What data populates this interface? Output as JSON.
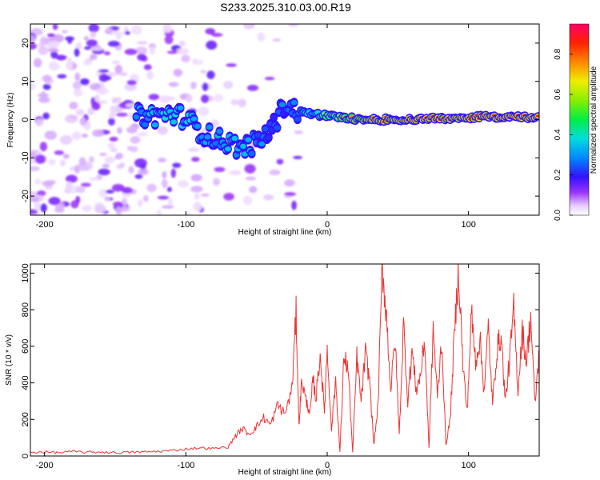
{
  "title": "S233.2025.310.03.00.R19",
  "colors": {
    "snr_line": "#ee3333",
    "axis": "#000000",
    "background": "#ffffff"
  },
  "chart_data": [
    {
      "type": "heatmap",
      "xlabel": "Height of straight line (km)",
      "ylabel": "Frequency (Hz)",
      "xlim": [
        -210,
        150
      ],
      "ylim": [
        -25,
        25
      ],
      "x_ticks": [
        {
          "value": -200,
          "label": "-200"
        },
        {
          "value": -100,
          "label": "-100"
        },
        {
          "value": 0,
          "label": "0"
        },
        {
          "value": 100,
          "label": "100"
        }
      ],
      "y_ticks": [
        {
          "value": 20,
          "label": "20"
        },
        {
          "value": 10,
          "label": "10"
        },
        {
          "value": 0,
          "label": "0"
        },
        {
          "value": -10,
          "label": "-10"
        },
        {
          "value": -20,
          "label": "-20"
        }
      ],
      "colorbar": {
        "label": "Normalized spectral amplitude",
        "range": [
          0,
          0.95
        ],
        "ticks": [
          {
            "value": 0.0,
            "label": "0.0"
          },
          {
            "value": 0.2,
            "label": "0.2"
          },
          {
            "value": 0.4,
            "label": "0.4"
          },
          {
            "value": 0.6,
            "label": "0.6"
          },
          {
            "value": 0.8,
            "label": "0.8"
          }
        ]
      },
      "ridge": {
        "x": [
          -135,
          -120,
          -110,
          -100,
          -90,
          -80,
          -70,
          -60,
          -50,
          -40,
          -30,
          -20,
          -10,
          0,
          10,
          30,
          50,
          70,
          90,
          110,
          130,
          150
        ],
        "freq": [
          1,
          1,
          1.5,
          0.5,
          -3,
          -5,
          -6,
          -7.5,
          -6,
          -3,
          4,
          2,
          1.5,
          1,
          0.5,
          0,
          0,
          0.2,
          0.4,
          0.8,
          0.6,
          0.5
        ],
        "strength": [
          0.35,
          0.45,
          0.5,
          0.45,
          0.4,
          0.4,
          0.4,
          0.4,
          0.35,
          0.3,
          0.3,
          0.35,
          0.45,
          0.55,
          0.65,
          0.8,
          0.85,
          0.9,
          0.85,
          0.9,
          0.9,
          0.85
        ]
      }
    },
    {
      "type": "line",
      "name": "SNR",
      "xlabel": "Height of straight line (km)",
      "ylabel": "SNR (10 * v/v)",
      "xlim": [
        -210,
        150
      ],
      "ylim": [
        0,
        1050
      ],
      "x_ticks": [
        {
          "value": -200,
          "label": "-200"
        },
        {
          "value": -100,
          "label": "-100"
        },
        {
          "value": 0,
          "label": "0"
        },
        {
          "value": 100,
          "label": "100"
        }
      ],
      "y_ticks": [
        {
          "value": 0,
          "label": "0"
        },
        {
          "value": 200,
          "label": "200"
        },
        {
          "value": 400,
          "label": "400"
        },
        {
          "value": 600,
          "label": "600"
        },
        {
          "value": 800,
          "label": "800"
        },
        {
          "value": 1000,
          "label": "1000"
        }
      ],
      "x": [
        -210,
        -200,
        -190,
        -180,
        -170,
        -160,
        -150,
        -140,
        -130,
        -120,
        -110,
        -100,
        -90,
        -80,
        -70,
        -65,
        -60,
        -55,
        -50,
        -45,
        -40,
        -35,
        -30,
        -25,
        -22,
        -20,
        -18,
        -15,
        -12,
        -10,
        -8,
        -5,
        -2,
        0,
        3,
        6,
        9,
        12,
        15,
        18,
        21,
        24,
        27,
        30,
        33,
        36,
        39,
        42,
        45,
        48,
        51,
        54,
        57,
        60,
        63,
        66,
        69,
        72,
        75,
        78,
        81,
        84,
        87,
        90,
        93,
        96,
        99,
        102,
        105,
        108,
        111,
        114,
        117,
        120,
        123,
        126,
        129,
        132,
        135,
        138,
        141,
        144,
        147,
        150
      ],
      "values": [
        20,
        22,
        18,
        25,
        20,
        22,
        18,
        20,
        22,
        25,
        30,
        38,
        45,
        40,
        50,
        110,
        150,
        120,
        160,
        210,
        170,
        280,
        230,
        360,
        780,
        170,
        420,
        300,
        240,
        420,
        310,
        560,
        240,
        600,
        140,
        420,
        20,
        560,
        460,
        20,
        540,
        300,
        560,
        420,
        60,
        280,
        1040,
        760,
        360,
        640,
        120,
        720,
        300,
        580,
        360,
        440,
        640,
        40,
        700,
        320,
        640,
        60,
        200,
        660,
        1030,
        500,
        240,
        780,
        520,
        640,
        360,
        700,
        280,
        580,
        660,
        300,
        520,
        800,
        360,
        680,
        520,
        760,
        280,
        580
      ]
    }
  ]
}
